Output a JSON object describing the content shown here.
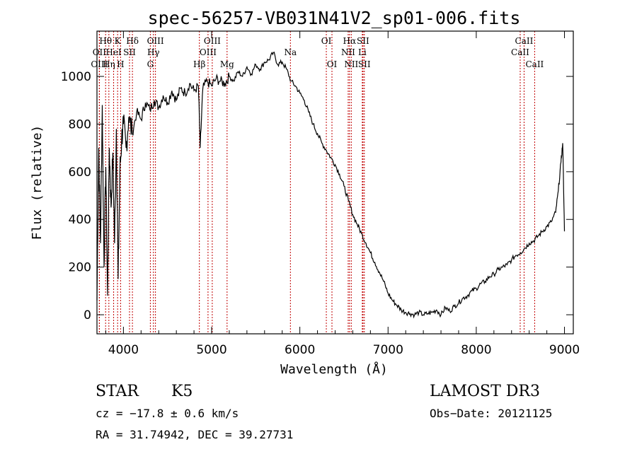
{
  "chart_data": {
    "type": "line",
    "title": "spec-56257-VB031N41V2_sp01-006.fits",
    "xlabel": "Wavelength (Å)",
    "ylabel": "Flux (relative)",
    "xlim": [
      3700,
      9100
    ],
    "ylim": [
      -80,
      1190
    ],
    "x_ticks": [
      4000,
      5000,
      6000,
      7000,
      8000,
      9000
    ],
    "x_tick_labels": [
      "4000",
      "5000",
      "6000",
      "7000",
      "8000",
      "9000"
    ],
    "y_ticks": [
      0,
      200,
      400,
      600,
      800,
      1000
    ],
    "y_tick_labels": [
      "0",
      "200",
      "400",
      "600",
      "800",
      "1000"
    ],
    "series": [
      {
        "name": "flux",
        "x": [
          3700,
          3720,
          3740,
          3760,
          3780,
          3800,
          3820,
          3840,
          3860,
          3880,
          3900,
          3920,
          3940,
          3960,
          3980,
          4000,
          4030,
          4060,
          4100,
          4150,
          4200,
          4250,
          4300,
          4350,
          4400,
          4450,
          4500,
          4550,
          4600,
          4650,
          4700,
          4750,
          4800,
          4850,
          4870,
          4900,
          4950,
          5000,
          5050,
          5100,
          5150,
          5200,
          5250,
          5300,
          5350,
          5400,
          5450,
          5500,
          5550,
          5600,
          5650,
          5700,
          5750,
          5800,
          5850,
          5900,
          5950,
          6000,
          6050,
          6100,
          6150,
          6200,
          6250,
          6300,
          6350,
          6400,
          6450,
          6500,
          6550,
          6600,
          6650,
          6700,
          6750,
          6800,
          6850,
          6900,
          6950,
          7000,
          7050,
          7100,
          7150,
          7200,
          7250,
          7300,
          7350,
          7400,
          7450,
          7500,
          7550,
          7600,
          7650,
          7700,
          7750,
          7800,
          7850,
          7900,
          7950,
          8000,
          8050,
          8100,
          8150,
          8200,
          8250,
          8300,
          8350,
          8400,
          8450,
          8500,
          8550,
          8600,
          8650,
          8700,
          8750,
          8800,
          8850,
          8900,
          8930,
          8960,
          8980,
          9000
        ],
        "y": [
          60,
          700,
          300,
          880,
          200,
          620,
          80,
          700,
          450,
          680,
          300,
          780,
          150,
          600,
          740,
          800,
          700,
          830,
          760,
          850,
          820,
          890,
          860,
          900,
          870,
          920,
          890,
          940,
          900,
          950,
          930,
          970,
          940,
          960,
          700,
          950,
          980,
          960,
          990,
          980,
          970,
          1000,
          980,
          1020,
          1000,
          1040,
          1010,
          1050,
          1030,
          1060,
          1070,
          1100,
          1050,
          1060,
          1030,
          980,
          960,
          930,
          900,
          850,
          800,
          760,
          720,
          690,
          660,
          630,
          590,
          540,
          480,
          420,
          380,
          340,
          300,
          260,
          220,
          180,
          140,
          90,
          60,
          40,
          20,
          10,
          5,
          0,
          10,
          0,
          5,
          10,
          20,
          0,
          30,
          15,
          35,
          50,
          70,
          80,
          100,
          110,
          130,
          140,
          160,
          170,
          190,
          200,
          210,
          230,
          250,
          260,
          280,
          300,
          310,
          330,
          350,
          370,
          390,
          430,
          520,
          640,
          720,
          350
        ]
      }
    ],
    "line_markers": [
      {
        "label": "Hθ",
        "wavelength": 3798,
        "row": 1
      },
      {
        "label": "OII",
        "wavelength": 3727,
        "row": 2
      },
      {
        "label": "OIII",
        "wavelength": 3727,
        "row": 3
      },
      {
        "label": "Hη",
        "wavelength": 3835,
        "row": 3
      },
      {
        "label": "K",
        "wavelength": 3934,
        "row": 1
      },
      {
        "label": "HeI",
        "wavelength": 3889,
        "row": 2
      },
      {
        "label": "H",
        "wavelength": 3968,
        "row": 3
      },
      {
        "label": "SII",
        "wavelength": 4069,
        "row": 2
      },
      {
        "label": "Hδ",
        "wavelength": 4102,
        "row": 1
      },
      {
        "label": "OIII",
        "wavelength": 4363,
        "row": 1
      },
      {
        "label": "Hγ",
        "wavelength": 4340,
        "row": 2
      },
      {
        "label": "G",
        "wavelength": 4305,
        "row": 3
      },
      {
        "label": "Hβ",
        "wavelength": 4861,
        "row": 3
      },
      {
        "label": "OIII",
        "wavelength": 5007,
        "row": 1
      },
      {
        "label": "OIII",
        "wavelength": 4959,
        "row": 2
      },
      {
        "label": "Mg",
        "wavelength": 5175,
        "row": 3
      },
      {
        "label": "Na",
        "wavelength": 5893,
        "row": 2
      },
      {
        "label": "OI",
        "wavelength": 6300,
        "row": 1
      },
      {
        "label": "OI",
        "wavelength": 6364,
        "row": 3
      },
      {
        "label": "Hα",
        "wavelength": 6563,
        "row": 1
      },
      {
        "label": "NII",
        "wavelength": 6548,
        "row": 2
      },
      {
        "label": "NII",
        "wavelength": 6583,
        "row": 3
      },
      {
        "label": "SII",
        "wavelength": 6716,
        "row": 1
      },
      {
        "label": "Li",
        "wavelength": 6708,
        "row": 2
      },
      {
        "label": "SII",
        "wavelength": 6731,
        "row": 3
      },
      {
        "label": "CaII",
        "wavelength": 8542,
        "row": 1
      },
      {
        "label": "CaII",
        "wavelength": 8498,
        "row": 2
      },
      {
        "label": "CaII",
        "wavelength": 8662,
        "row": 3
      }
    ]
  },
  "info": {
    "object_class": "STAR",
    "subclass": "K5",
    "survey": "LAMOST DR3",
    "cz": "cz = −17.8 ± 0.6 km/s",
    "obs_date": "Obs−Date: 20121125",
    "coords": "RA =  31.74942, DEC =  39.27731"
  },
  "colors": {
    "axis": "#000000",
    "spectrum": "#000000",
    "marker": "#c00000"
  }
}
